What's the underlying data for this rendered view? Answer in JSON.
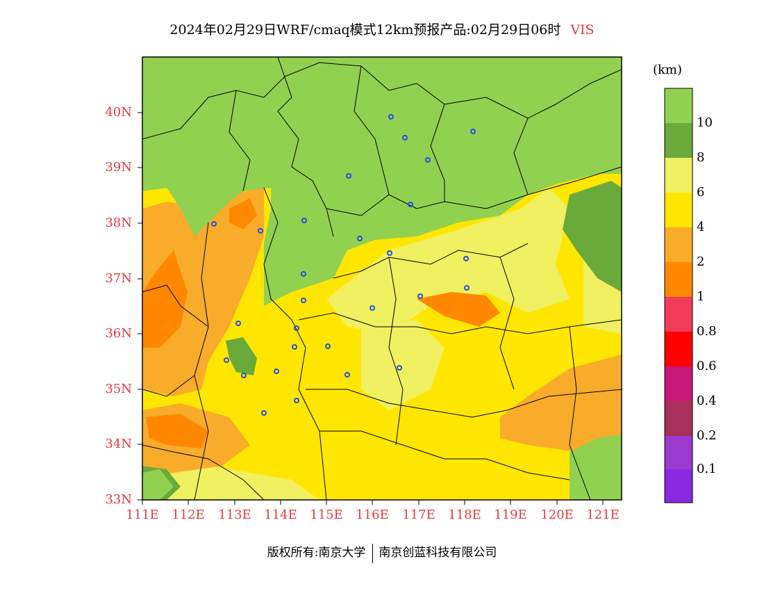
{
  "title": {
    "main": "2024年02月29日WRF/cmaq模式12km预报产品:02月29日06时",
    "variable": "VIS"
  },
  "axes": {
    "lat_labels": [
      "40N",
      "39N",
      "38N",
      "37N",
      "36N",
      "35N",
      "34N",
      "33N"
    ],
    "lon_labels": [
      "111E",
      "112E",
      "113E",
      "114E",
      "115E",
      "116E",
      "117E",
      "118E",
      "119E",
      "120E",
      "121E"
    ]
  },
  "colorbar": {
    "unit": "(km)",
    "labels": [
      "10",
      "8",
      "6",
      "4",
      "2",
      "1",
      "0.8",
      "0.6",
      "0.4",
      "0.2",
      "0.1"
    ],
    "colors": [
      "#92d050",
      "#6aaa3a",
      "#f0f060",
      "#ffe600",
      "#f8ac2a",
      "#ff8800",
      "#f23a5a",
      "#ff0000",
      "#c8187a",
      "#a8305a",
      "#9a3ad0",
      "#8a2ae0"
    ]
  },
  "footer": {
    "left": "版权所有:南京大学",
    "right": "南京创蓝科技有限公司"
  },
  "map": {
    "colors": {
      "vis_gt10": "#92d050",
      "vis_8_10": "#6aaa3a",
      "vis_6_8": "#f0f060",
      "vis_4_6": "#ffe600",
      "vis_2_4": "#f8ac2a",
      "vis_1_2": "#ff8800",
      "city_marker": "#2050e0"
    }
  }
}
